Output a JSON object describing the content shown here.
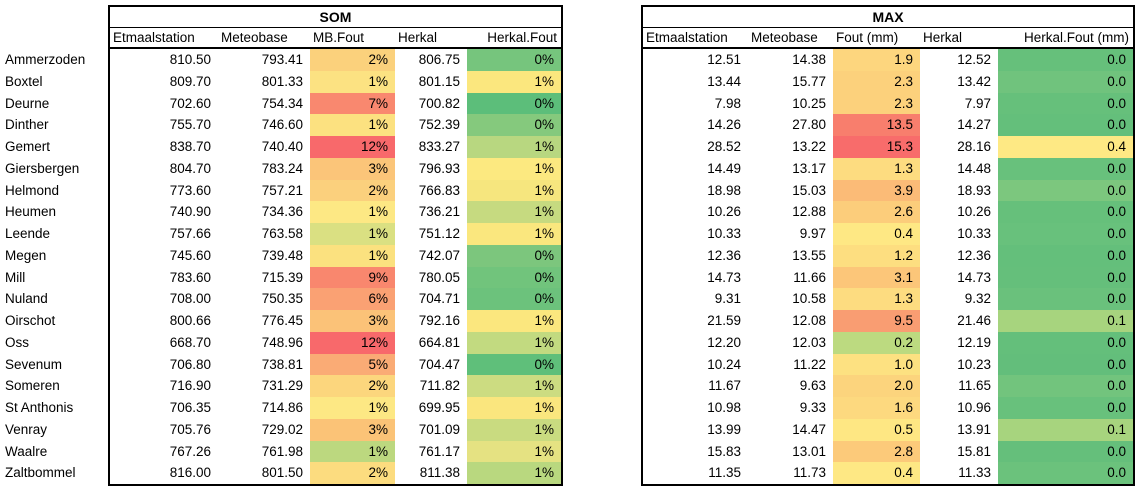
{
  "row_labels": [
    "Ammerzoden",
    "Boxtel",
    "Deurne",
    "Dinther",
    "Gemert",
    "Giersbergen",
    "Helmond",
    "Heumen",
    "Leende",
    "Megen",
    "Mill",
    "Nuland",
    "Oirschot",
    "Oss",
    "Sevenum",
    "Someren",
    "St Anthonis",
    "Venray",
    "Waalre",
    "Zaltbommel"
  ],
  "color_scale": {
    "low": "#63BE7B",
    "mid": "#FFEB84",
    "high": "#F8696B"
  },
  "tables": [
    {
      "title": "SOM",
      "columns": [
        "Etmaalstation",
        "Meteobase",
        "MB.Fout",
        "Herkal",
        "Herkal.Fout"
      ],
      "rows": [
        {
          "cells": [
            "810.50",
            "793.41",
            "2%",
            "806.75",
            "0%"
          ],
          "colors": [
            "",
            "",
            "#FBD17C",
            "",
            "#76C57D"
          ]
        },
        {
          "cells": [
            "809.70",
            "801.33",
            "1%",
            "801.15",
            "1%"
          ],
          "colors": [
            "",
            "",
            "#FCE282",
            "",
            "#FBE77E"
          ]
        },
        {
          "cells": [
            "702.60",
            "754.34",
            "7%",
            "700.82",
            "0%"
          ],
          "colors": [
            "",
            "",
            "#F9886F",
            "",
            "#5CBE7A"
          ]
        },
        {
          "cells": [
            "755.70",
            "746.60",
            "1%",
            "752.39",
            "0%"
          ],
          "colors": [
            "",
            "",
            "#FCE180",
            "",
            "#85C97D"
          ]
        },
        {
          "cells": [
            "838.70",
            "740.40",
            "12%",
            "833.27",
            "1%"
          ],
          "colors": [
            "",
            "",
            "#F8696B",
            "",
            "#B8D780"
          ]
        },
        {
          "cells": [
            "804.70",
            "783.24",
            "3%",
            "796.93",
            "1%"
          ],
          "colors": [
            "",
            "",
            "#FBC579",
            "",
            "#FCE980"
          ]
        },
        {
          "cells": [
            "773.60",
            "757.21",
            "2%",
            "766.83",
            "1%"
          ],
          "colors": [
            "",
            "",
            "#FBD07D",
            "",
            "#F6E67E"
          ]
        },
        {
          "cells": [
            "740.90",
            "734.36",
            "1%",
            "736.21",
            "1%"
          ],
          "colors": [
            "",
            "",
            "#FDE884",
            "",
            "#C6DA80"
          ]
        },
        {
          "cells": [
            "757.66",
            "763.58",
            "1%",
            "751.12",
            "1%"
          ],
          "colors": [
            "",
            "",
            "#DAE082",
            "",
            "#FAE77E"
          ]
        },
        {
          "cells": [
            "745.60",
            "739.48",
            "1%",
            "742.07",
            "0%"
          ],
          "colors": [
            "",
            "",
            "#FBE17F",
            "",
            "#7CC67D"
          ]
        },
        {
          "cells": [
            "783.60",
            "715.39",
            "9%",
            "780.05",
            "0%"
          ],
          "colors": [
            "",
            "",
            "#F9876E",
            "",
            "#71C47C"
          ]
        },
        {
          "cells": [
            "708.00",
            "750.35",
            "6%",
            "704.71",
            "0%"
          ],
          "colors": [
            "",
            "",
            "#FAA173",
            "",
            "#6CC27C"
          ]
        },
        {
          "cells": [
            "800.66",
            "776.45",
            "3%",
            "792.16",
            "1%"
          ],
          "colors": [
            "",
            "",
            "#FBC278",
            "",
            "#FBE77E"
          ]
        },
        {
          "cells": [
            "668.70",
            "748.96",
            "12%",
            "664.81",
            "1%"
          ],
          "colors": [
            "",
            "",
            "#F8696B",
            "",
            "#C2DA80"
          ]
        },
        {
          "cells": [
            "706.80",
            "738.81",
            "5%",
            "704.47",
            "0%"
          ],
          "colors": [
            "",
            "",
            "#FAAB75",
            "",
            "#5FBF7A"
          ]
        },
        {
          "cells": [
            "716.90",
            "731.29",
            "2%",
            "711.82",
            "1%"
          ],
          "colors": [
            "",
            "",
            "#FCD67D",
            "",
            "#CCDC81"
          ]
        },
        {
          "cells": [
            "706.35",
            "714.86",
            "1%",
            "699.95",
            "1%"
          ],
          "colors": [
            "",
            "",
            "#FDE884",
            "",
            "#FAE67E"
          ]
        },
        {
          "cells": [
            "705.76",
            "729.02",
            "3%",
            "701.09",
            "1%"
          ],
          "colors": [
            "",
            "",
            "#FBC377",
            "",
            "#C9DB80"
          ]
        },
        {
          "cells": [
            "767.26",
            "761.98",
            "1%",
            "761.17",
            "1%"
          ],
          "colors": [
            "",
            "",
            "#BCD87F",
            "",
            "#E5E282"
          ]
        },
        {
          "cells": [
            "816.00",
            "801.50",
            "2%",
            "811.38",
            "1%"
          ],
          "colors": [
            "",
            "",
            "#FCDC7F",
            "",
            "#B9D87F"
          ]
        }
      ]
    },
    {
      "title": "MAX",
      "columns": [
        "Etmaalstation",
        "Meteobase",
        "Fout (mm)",
        "Herkal",
        "Herkal.Fout (mm)"
      ],
      "rows": [
        {
          "cells": [
            "12.51",
            "14.38",
            "1.9",
            "12.52",
            "0.0"
          ],
          "colors": [
            "",
            "",
            "#FDD67E",
            "",
            "#66C07B"
          ]
        },
        {
          "cells": [
            "13.44",
            "15.77",
            "2.3",
            "13.42",
            "0.0"
          ],
          "colors": [
            "",
            "",
            "#FCD17C",
            "",
            "#70C37D"
          ]
        },
        {
          "cells": [
            "7.98",
            "10.25",
            "2.3",
            "7.97",
            "0.0"
          ],
          "colors": [
            "",
            "",
            "#FCD17C",
            "",
            "#66C07B"
          ]
        },
        {
          "cells": [
            "14.26",
            "27.80",
            "13.5",
            "14.27",
            "0.0"
          ],
          "colors": [
            "",
            "",
            "#F87E6D",
            "",
            "#64BF7B"
          ]
        },
        {
          "cells": [
            "28.52",
            "13.22",
            "15.3",
            "28.16",
            "0.4"
          ],
          "colors": [
            "",
            "",
            "#F86C6B",
            "",
            "#FEE984"
          ]
        },
        {
          "cells": [
            "14.49",
            "13.17",
            "1.3",
            "14.48",
            "0.0"
          ],
          "colors": [
            "",
            "",
            "#FDDC80",
            "",
            "#68C17C"
          ]
        },
        {
          "cells": [
            "18.98",
            "15.03",
            "3.9",
            "18.93",
            "0.0"
          ],
          "colors": [
            "",
            "",
            "#FBBB77",
            "",
            "#7CC77E"
          ]
        },
        {
          "cells": [
            "10.26",
            "12.88",
            "2.6",
            "10.26",
            "0.0"
          ],
          "colors": [
            "",
            "",
            "#FCCD7B",
            "",
            "#66C07B"
          ]
        },
        {
          "cells": [
            "10.33",
            "9.97",
            "0.4",
            "10.33",
            "0.0"
          ],
          "colors": [
            "",
            "",
            "#FEE884",
            "",
            "#68C17C"
          ]
        },
        {
          "cells": [
            "12.36",
            "13.55",
            "1.2",
            "12.36",
            "0.0"
          ],
          "colors": [
            "",
            "",
            "#FDDE80",
            "",
            "#64BF7B"
          ]
        },
        {
          "cells": [
            "14.73",
            "11.66",
            "3.1",
            "14.73",
            "0.0"
          ],
          "colors": [
            "",
            "",
            "#FCC679",
            "",
            "#65BF7B"
          ]
        },
        {
          "cells": [
            "9.31",
            "10.58",
            "1.3",
            "9.32",
            "0.0"
          ],
          "colors": [
            "",
            "",
            "#FDDC80",
            "",
            "#6AC17C"
          ]
        },
        {
          "cells": [
            "21.59",
            "12.08",
            "9.5",
            "21.46",
            "0.1"
          ],
          "colors": [
            "",
            "",
            "#F99D72",
            "",
            "#A7D47E"
          ]
        },
        {
          "cells": [
            "12.20",
            "12.03",
            "0.2",
            "12.19",
            "0.0"
          ],
          "colors": [
            "",
            "",
            "#BCDA80",
            "",
            "#64BF7B"
          ]
        },
        {
          "cells": [
            "10.24",
            "11.22",
            "1.0",
            "10.23",
            "0.0"
          ],
          "colors": [
            "",
            "",
            "#FDE181",
            "",
            "#63BE7B"
          ]
        },
        {
          "cells": [
            "11.67",
            "9.63",
            "2.0",
            "11.65",
            "0.0"
          ],
          "colors": [
            "",
            "",
            "#FCD47D",
            "",
            "#72C47D"
          ]
        },
        {
          "cells": [
            "10.98",
            "9.33",
            "1.6",
            "10.96",
            "0.0"
          ],
          "colors": [
            "",
            "",
            "#FDD97F",
            "",
            "#68C17C"
          ]
        },
        {
          "cells": [
            "13.99",
            "14.47",
            "0.5",
            "13.91",
            "0.1"
          ],
          "colors": [
            "",
            "",
            "#FEE783",
            "",
            "#A7D47E"
          ]
        },
        {
          "cells": [
            "15.83",
            "13.01",
            "2.8",
            "15.81",
            "0.0"
          ],
          "colors": [
            "",
            "",
            "#FCCA7A",
            "",
            "#65BF7B"
          ]
        },
        {
          "cells": [
            "11.35",
            "11.73",
            "0.4",
            "11.33",
            "0.0"
          ],
          "colors": [
            "",
            "",
            "#FEE884",
            "",
            "#6BC27C"
          ]
        }
      ]
    }
  ]
}
